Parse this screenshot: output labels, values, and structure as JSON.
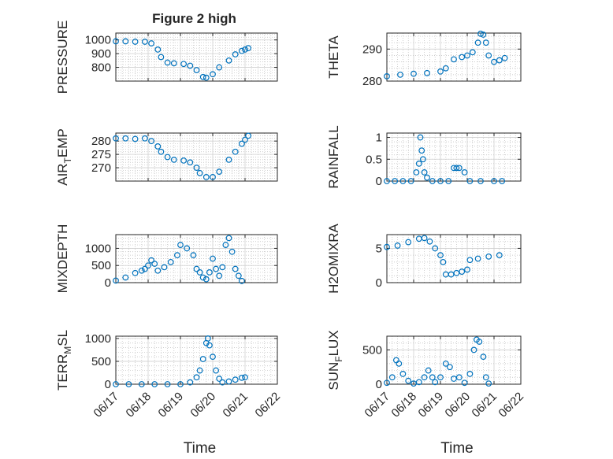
{
  "figure": {
    "title": "Figure 2 high",
    "xlabel": "Time"
  },
  "colors": {
    "series": "#0072BD",
    "axis": "#262626",
    "grid": "#d0d0d0",
    "minor_grid": "#bdbdbd"
  },
  "chart_data": [
    {
      "type": "scatter",
      "ylabel": "PRESSURE",
      "ylabel_parts": [
        "PRESSURE"
      ],
      "xlim": [
        0,
        5
      ],
      "ylim": [
        700,
        1050
      ],
      "yticks": [
        800,
        900,
        1000
      ],
      "xticks": [
        0,
        1,
        2,
        3,
        4,
        5
      ],
      "xtick_labels": [],
      "title": "Figure 2 high",
      "points": [
        [
          0,
          990
        ],
        [
          0.3,
          990
        ],
        [
          0.6,
          987
        ],
        [
          0.9,
          987
        ],
        [
          1.1,
          975
        ],
        [
          1.3,
          930
        ],
        [
          1.4,
          875
        ],
        [
          1.6,
          835
        ],
        [
          1.8,
          830
        ],
        [
          2.1,
          825
        ],
        [
          2.3,
          812
        ],
        [
          2.5,
          780
        ],
        [
          2.7,
          730
        ],
        [
          2.8,
          725
        ],
        [
          3.0,
          750
        ],
        [
          3.2,
          800
        ],
        [
          3.5,
          850
        ],
        [
          3.7,
          895
        ],
        [
          3.9,
          920
        ],
        [
          4.0,
          930
        ],
        [
          4.1,
          940
        ]
      ]
    },
    {
      "type": "scatter",
      "ylabel": "THETA",
      "ylabel_parts": [
        "THETA"
      ],
      "xlim": [
        0,
        5
      ],
      "ylim": [
        280,
        295
      ],
      "yticks": [
        280,
        290
      ],
      "xticks": [
        0,
        1,
        2,
        3,
        4,
        5
      ],
      "xtick_labels": [],
      "points": [
        [
          0,
          281.5
        ],
        [
          0.5,
          282
        ],
        [
          1.0,
          282.3
        ],
        [
          1.5,
          282.5
        ],
        [
          2.0,
          283
        ],
        [
          2.2,
          284
        ],
        [
          2.5,
          286.8
        ],
        [
          2.8,
          287.5
        ],
        [
          3.0,
          288
        ],
        [
          3.2,
          289
        ],
        [
          3.4,
          292
        ],
        [
          3.5,
          294.8
        ],
        [
          3.6,
          294.5
        ],
        [
          3.7,
          292
        ],
        [
          3.8,
          288
        ],
        [
          4.0,
          286
        ],
        [
          4.2,
          286.5
        ],
        [
          4.4,
          287.2
        ]
      ]
    },
    {
      "type": "scatter",
      "ylabel": "AIR_TEMP",
      "ylabel_parts": [
        "AIR",
        "T",
        "EMP"
      ],
      "xlim": [
        0,
        5
      ],
      "ylim": [
        265,
        283
      ],
      "yticks": [
        270,
        275,
        280
      ],
      "xticks": [
        0,
        1,
        2,
        3,
        4,
        5
      ],
      "xtick_labels": [],
      "points": [
        [
          0,
          281
        ],
        [
          0.3,
          281
        ],
        [
          0.6,
          280.8
        ],
        [
          0.9,
          281
        ],
        [
          1.1,
          280
        ],
        [
          1.3,
          278
        ],
        [
          1.4,
          276
        ],
        [
          1.6,
          274
        ],
        [
          1.8,
          273
        ],
        [
          2.1,
          272.7
        ],
        [
          2.3,
          272
        ],
        [
          2.5,
          270
        ],
        [
          2.6,
          268
        ],
        [
          2.8,
          266.5
        ],
        [
          3.0,
          266.5
        ],
        [
          3.2,
          268.5
        ],
        [
          3.5,
          273
        ],
        [
          3.7,
          276
        ],
        [
          3.9,
          279
        ],
        [
          4.0,
          280.5
        ],
        [
          4.1,
          282
        ]
      ]
    },
    {
      "type": "scatter",
      "ylabel": "RAINFALL",
      "ylabel_parts": [
        "RAINFALL"
      ],
      "xlim": [
        0,
        5
      ],
      "ylim": [
        0,
        1.1
      ],
      "yticks": [
        0,
        0.5,
        1
      ],
      "xticks": [
        0,
        1,
        2,
        3,
        4,
        5
      ],
      "xtick_labels": [],
      "points": [
        [
          0,
          0
        ],
        [
          0.3,
          0
        ],
        [
          0.6,
          0
        ],
        [
          0.9,
          0
        ],
        [
          1.1,
          0.2
        ],
        [
          1.2,
          0.4
        ],
        [
          1.25,
          1.0
        ],
        [
          1.3,
          0.7
        ],
        [
          1.35,
          0.5
        ],
        [
          1.4,
          0.2
        ],
        [
          1.5,
          0.08
        ],
        [
          1.7,
          0
        ],
        [
          2.0,
          0
        ],
        [
          2.3,
          0
        ],
        [
          2.5,
          0.3
        ],
        [
          2.6,
          0.3
        ],
        [
          2.7,
          0.3
        ],
        [
          2.9,
          0.2
        ],
        [
          3.1,
          0
        ],
        [
          3.5,
          0
        ],
        [
          4.0,
          0
        ],
        [
          4.3,
          0
        ]
      ]
    },
    {
      "type": "scatter",
      "ylabel": "MIXDEPTH",
      "ylabel_parts": [
        "MIXDEPTH"
      ],
      "xlim": [
        0,
        5
      ],
      "ylim": [
        0,
        1400
      ],
      "yticks": [
        0,
        500,
        1000
      ],
      "xticks": [
        0,
        1,
        2,
        3,
        4,
        5
      ],
      "xtick_labels": [],
      "points": [
        [
          0,
          60
        ],
        [
          0.3,
          150
        ],
        [
          0.6,
          280
        ],
        [
          0.8,
          350
        ],
        [
          0.9,
          400
        ],
        [
          1.0,
          500
        ],
        [
          1.1,
          650
        ],
        [
          1.2,
          550
        ],
        [
          1.3,
          350
        ],
        [
          1.5,
          450
        ],
        [
          1.7,
          600
        ],
        [
          1.9,
          800
        ],
        [
          2.0,
          1100
        ],
        [
          2.2,
          1000
        ],
        [
          2.4,
          800
        ],
        [
          2.5,
          400
        ],
        [
          2.6,
          300
        ],
        [
          2.7,
          150
        ],
        [
          2.8,
          100
        ],
        [
          2.9,
          300
        ],
        [
          3.0,
          700
        ],
        [
          3.1,
          400
        ],
        [
          3.2,
          200
        ],
        [
          3.3,
          450
        ],
        [
          3.4,
          1100
        ],
        [
          3.5,
          1300
        ],
        [
          3.6,
          900
        ],
        [
          3.7,
          400
        ],
        [
          3.8,
          200
        ],
        [
          3.9,
          50
        ]
      ]
    },
    {
      "type": "scatter",
      "ylabel": "H2OMIXRA",
      "ylabel_parts": [
        "H2OMIXRA"
      ],
      "xlim": [
        0,
        5
      ],
      "ylim": [
        0,
        7
      ],
      "yticks": [
        0,
        5
      ],
      "xticks": [
        0,
        1,
        2,
        3,
        4,
        5
      ],
      "xtick_labels": [],
      "points": [
        [
          0,
          5.2
        ],
        [
          0.4,
          5.4
        ],
        [
          0.8,
          5.9
        ],
        [
          1.2,
          6.4
        ],
        [
          1.4,
          6.5
        ],
        [
          1.6,
          6.0
        ],
        [
          1.8,
          5.0
        ],
        [
          2.0,
          4.0
        ],
        [
          2.1,
          3.0
        ],
        [
          2.2,
          1.2
        ],
        [
          2.4,
          1.2
        ],
        [
          2.6,
          1.4
        ],
        [
          2.8,
          1.6
        ],
        [
          3.0,
          1.9
        ],
        [
          3.1,
          3.3
        ],
        [
          3.4,
          3.5
        ],
        [
          3.8,
          3.8
        ],
        [
          4.2,
          4.0
        ]
      ]
    },
    {
      "type": "scatter",
      "ylabel": "TERR_MSL",
      "ylabel_parts": [
        "TERR",
        "M",
        "SL"
      ],
      "xlim": [
        0,
        5
      ],
      "ylim": [
        0,
        1050
      ],
      "yticks": [
        0,
        500,
        1000
      ],
      "xticks": [
        0,
        1,
        2,
        3,
        4,
        5
      ],
      "xtick_labels": [
        "06/17",
        "06/18",
        "06/19",
        "06/20",
        "06/21",
        "06/22"
      ],
      "points": [
        [
          0,
          0
        ],
        [
          0.4,
          0
        ],
        [
          0.8,
          0
        ],
        [
          1.2,
          0
        ],
        [
          1.6,
          0
        ],
        [
          2.0,
          0
        ],
        [
          2.3,
          40
        ],
        [
          2.5,
          150
        ],
        [
          2.6,
          300
        ],
        [
          2.7,
          550
        ],
        [
          2.8,
          900
        ],
        [
          2.85,
          1000
        ],
        [
          2.9,
          850
        ],
        [
          3.0,
          600
        ],
        [
          3.1,
          300
        ],
        [
          3.2,
          120
        ],
        [
          3.3,
          40
        ],
        [
          3.5,
          60
        ],
        [
          3.7,
          100
        ],
        [
          3.9,
          140
        ],
        [
          4.0,
          150
        ]
      ]
    },
    {
      "type": "scatter",
      "ylabel": "SUN_FLUX",
      "ylabel_parts": [
        "SUN",
        "F",
        "LUX"
      ],
      "xlim": [
        0,
        5
      ],
      "ylim": [
        0,
        700
      ],
      "yticks": [
        0,
        500
      ],
      "xticks": [
        0,
        1,
        2,
        3,
        4,
        5
      ],
      "xtick_labels": [
        "06/17",
        "06/18",
        "06/19",
        "06/20",
        "06/21",
        "06/22"
      ],
      "points": [
        [
          0,
          20
        ],
        [
          0.2,
          100
        ],
        [
          0.35,
          350
        ],
        [
          0.45,
          300
        ],
        [
          0.6,
          150
        ],
        [
          0.8,
          50
        ],
        [
          1.0,
          10
        ],
        [
          1.2,
          30
        ],
        [
          1.4,
          100
        ],
        [
          1.55,
          200
        ],
        [
          1.7,
          100
        ],
        [
          1.8,
          30
        ],
        [
          2.0,
          100
        ],
        [
          2.2,
          300
        ],
        [
          2.35,
          250
        ],
        [
          2.5,
          80
        ],
        [
          2.7,
          100
        ],
        [
          2.9,
          20
        ],
        [
          3.1,
          150
        ],
        [
          3.25,
          500
        ],
        [
          3.35,
          650
        ],
        [
          3.45,
          620
        ],
        [
          3.6,
          400
        ],
        [
          3.7,
          100
        ],
        [
          3.8,
          10
        ]
      ]
    }
  ]
}
